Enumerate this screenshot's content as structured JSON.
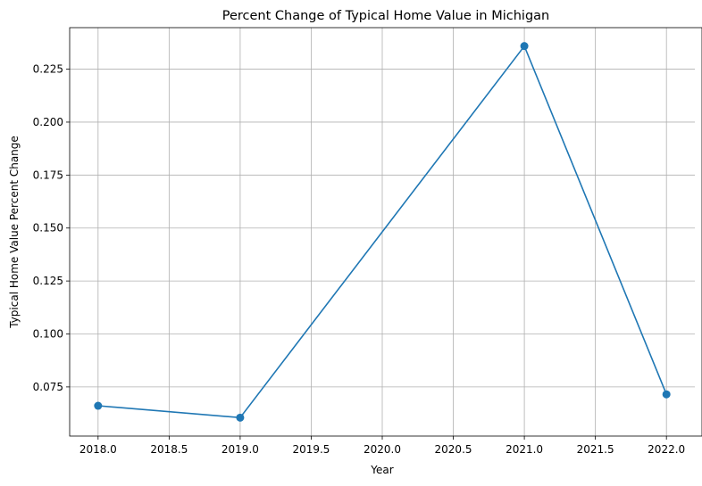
{
  "chart_data": {
    "type": "line",
    "title": "Percent Change of Typical Home Value in Michigan",
    "xlabel": "Year",
    "ylabel": "Typical Home Value Percent Change",
    "x": [
      2018,
      2019,
      2021,
      2022
    ],
    "series": [
      {
        "values": [
          0.0661,
          0.0605,
          0.2359,
          0.0715
        ]
      }
    ],
    "xlim": [
      2017.8,
      2022.2
    ],
    "ylim": [
      0.0518,
      0.2446
    ],
    "xticks": [
      2018.0,
      2018.5,
      2019.0,
      2019.5,
      2020.0,
      2020.5,
      2021.0,
      2021.5,
      2022.0
    ],
    "xtick_labels": [
      "2018.0",
      "2018.5",
      "2019.0",
      "2019.5",
      "2020.0",
      "2020.5",
      "2021.0",
      "2021.5",
      "2022.0"
    ],
    "yticks": [
      0.075,
      0.1,
      0.125,
      0.15,
      0.175,
      0.2,
      0.225
    ],
    "ytick_labels": [
      "0.075",
      "0.100",
      "0.125",
      "0.150",
      "0.175",
      "0.200",
      "0.225"
    ],
    "grid": true,
    "marker": "circle",
    "line_color": "#1f77b4"
  }
}
